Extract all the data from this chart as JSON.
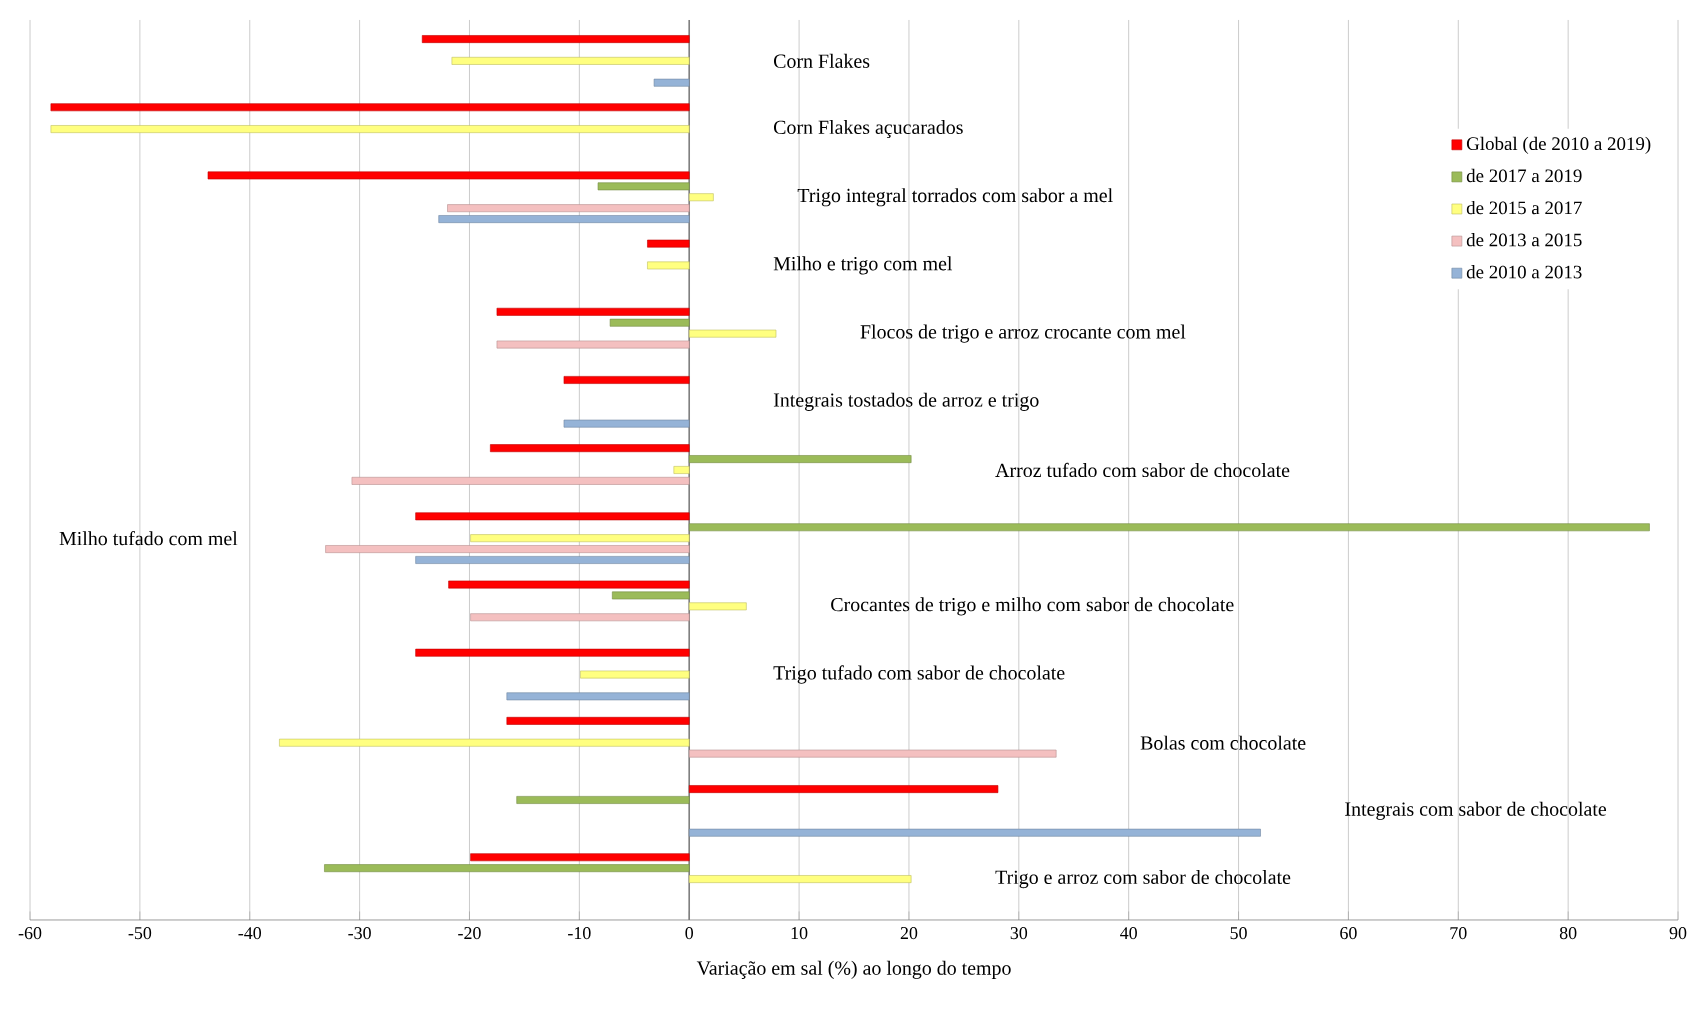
{
  "chart_data": {
    "type": "bar",
    "orientation": "horizontal",
    "xlabel": "Variação em sal (%) ao longo do tempo",
    "categories": [
      "Corn Flakes",
      "Corn Flakes açucarados",
      "Trigo integral torrados com sabor a mel",
      "Milho e trigo com mel",
      "Flocos de trigo e arroz crocante com mel",
      "Integrais tostados de arroz e trigo",
      "Arroz tufado com sabor de chocolate",
      "Milho tufado com mel",
      "Crocantes de trigo e milho com sabor de chocolate",
      "Trigo tufado com sabor de chocolate",
      "Bolas com chocolate",
      "Integrais com sabor de chocolate",
      "Trigo e arroz com sabor de chocolate"
    ],
    "series": [
      {
        "name": "Global (de 2010 a 2019)",
        "color": "#ff0000",
        "values": [
          -24.3,
          -58.1,
          -43.8,
          -3.8,
          -17.5,
          -11.4,
          -18.1,
          -24.9,
          -21.9,
          -24.9,
          -16.6,
          28.1,
          -19.9
        ]
      },
      {
        "name": "de 2017 a 2019",
        "color": "#9bbb59",
        "values": [
          null,
          null,
          -8.3,
          null,
          -7.2,
          null,
          20.2,
          87.4,
          -7.0,
          null,
          null,
          -15.7,
          -33.2
        ]
      },
      {
        "name": "de 2015 a 2017",
        "color": "#ffff80",
        "values": [
          -21.6,
          -58.1,
          2.2,
          -3.8,
          7.9,
          null,
          -1.4,
          -19.9,
          5.2,
          -9.9,
          -37.3,
          null,
          20.2
        ]
      },
      {
        "name": "de 2013 a 2015",
        "color": "#f4c0c0",
        "values": [
          null,
          null,
          -22.0,
          null,
          -17.5,
          null,
          -30.7,
          -33.1,
          -19.9,
          null,
          33.4,
          null,
          null
        ]
      },
      {
        "name": "de 2010 a 2013",
        "color": "#95b3d7",
        "values": [
          -3.2,
          null,
          -22.8,
          null,
          null,
          -11.4,
          null,
          -24.9,
          null,
          -16.6,
          null,
          52.0,
          null
        ]
      }
    ],
    "xlim": [
      -60,
      90
    ],
    "xticks": [
      -60,
      -50,
      -40,
      -30,
      -20,
      -10,
      0,
      10,
      20,
      30,
      40,
      50,
      60,
      70,
      80,
      90
    ],
    "grid": "x",
    "legend": "right",
    "tick_labels": "x"
  }
}
